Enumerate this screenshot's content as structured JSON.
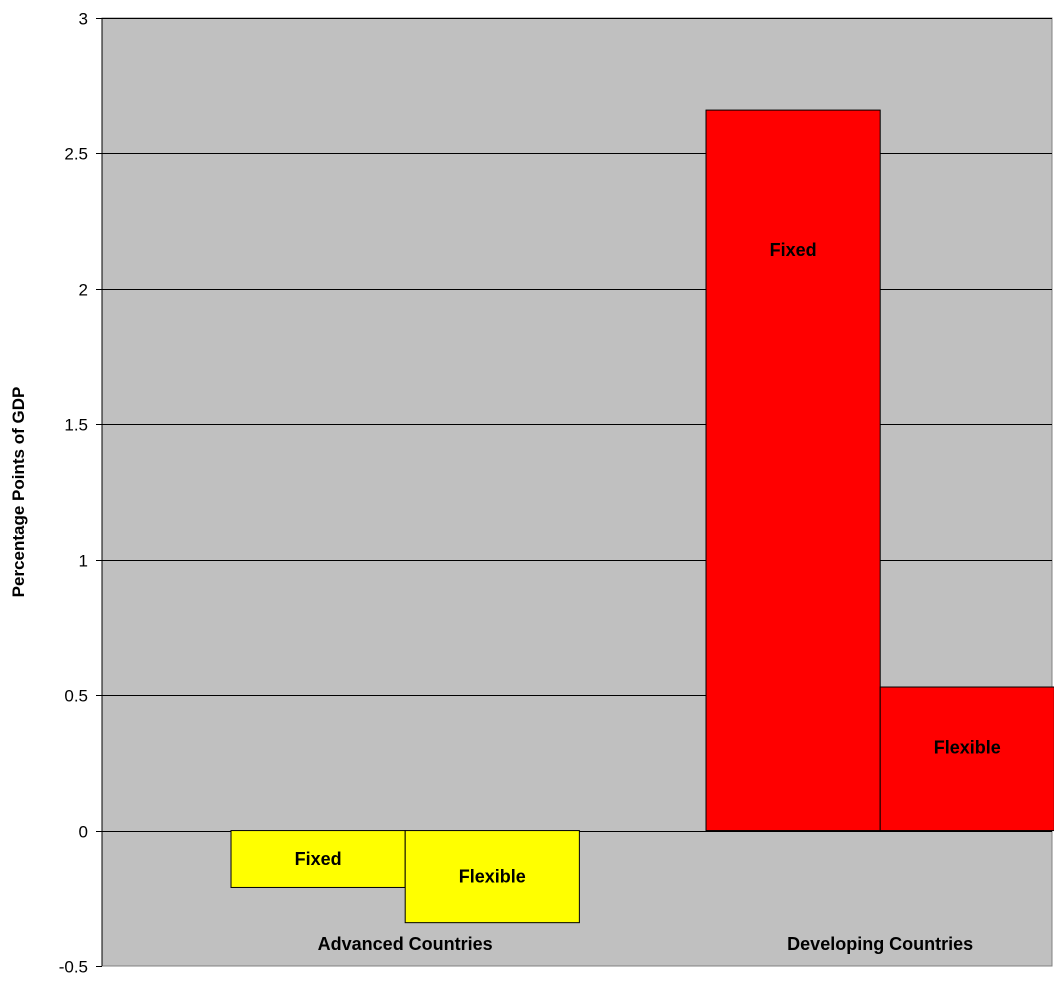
{
  "chart_data": {
    "type": "bar",
    "title": "",
    "xlabel": "",
    "ylabel": "Percentage Points of GDP",
    "ylim": [
      -0.5,
      3
    ],
    "yticks": [
      -0.5,
      0,
      0.5,
      1,
      1.5,
      2,
      2.5,
      3
    ],
    "ytick_labels": [
      "-0.5",
      "0",
      "0.5",
      "1",
      "1.5",
      "2",
      "2.5",
      "3"
    ],
    "grid": true,
    "legend": "none",
    "background_color": "#c0c0c0",
    "categories": [
      "Advanced Countries",
      "Developing Countries"
    ],
    "bars": [
      {
        "category": "Advanced Countries",
        "label": "Fixed",
        "value": -0.21,
        "color": "#ffff00"
      },
      {
        "category": "Advanced Countries",
        "label": "Flexible",
        "value": -0.34,
        "color": "#ffff00"
      },
      {
        "category": "Developing Countries",
        "label": "Fixed",
        "value": 2.66,
        "color": "#ff0000"
      },
      {
        "category": "Developing Countries",
        "label": "Flexible",
        "value": 0.53,
        "color": "#ff0000"
      }
    ]
  }
}
